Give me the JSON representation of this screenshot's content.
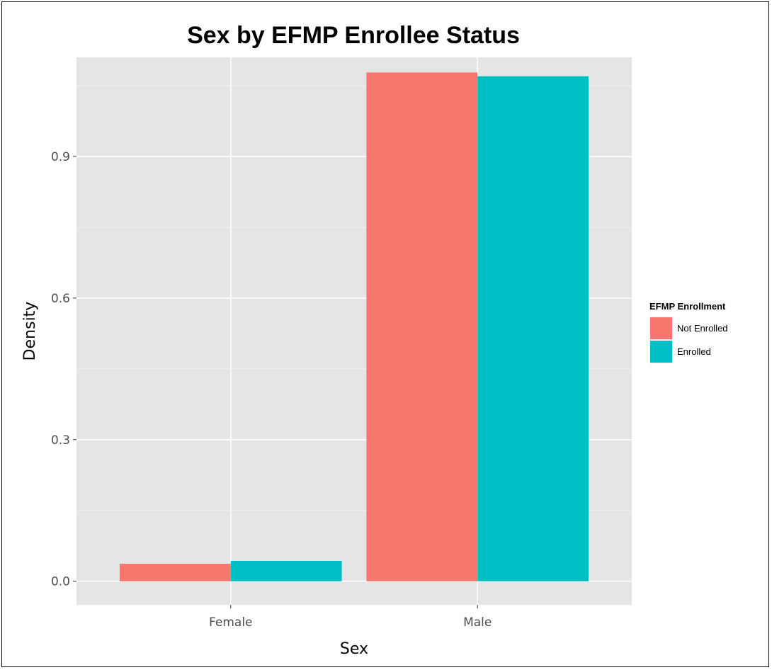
{
  "chart_data": {
    "type": "bar",
    "title": "Sex by EFMP Enrollee Status",
    "xlabel": "Sex",
    "ylabel": "Density",
    "categories": [
      "Female",
      "Male"
    ],
    "series": [
      {
        "name": "Not Enrolled",
        "values": [
          0.037,
          1.078
        ],
        "color": "#F8766D"
      },
      {
        "name": "Enrolled",
        "values": [
          0.043,
          1.07
        ],
        "color": "#00BFC4"
      }
    ],
    "ylim": [
      -0.05,
      1.11
    ],
    "yticks": [
      0.0,
      0.3,
      0.6,
      0.9
    ],
    "ytick_labels": [
      "0.0",
      "0.3",
      "0.6",
      "0.9"
    ],
    "legend": {
      "title": "EFMP Enrollment",
      "position": "right"
    },
    "grid": true,
    "panel_color": "#E5E5E5"
  }
}
